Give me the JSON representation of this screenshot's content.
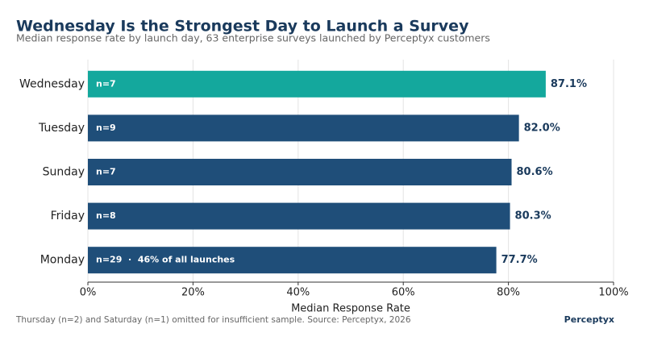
{
  "chart_data": {
    "type": "bar",
    "orientation": "horizontal",
    "title": "Wednesday Is the Strongest Day to Launch a Survey",
    "subtitle": "Median response rate by launch day, 63 enterprise surveys launched by Perceptyx customers",
    "categories": [
      "Wednesday",
      "Tuesday",
      "Sunday",
      "Friday",
      "Monday"
    ],
    "values": [
      87.1,
      82.0,
      80.6,
      80.3,
      77.7
    ],
    "value_labels": [
      "87.1%",
      "82.0%",
      "80.6%",
      "80.3%",
      "77.7%"
    ],
    "bar_annotations": [
      "n=7",
      "n=9",
      "n=7",
      "n=8",
      "n=29  ·  46% of all launches"
    ],
    "colors": [
      "#14a89d",
      "#1f4e79",
      "#1f4e79",
      "#1f4e79",
      "#1f4e79"
    ],
    "xlim": [
      0,
      100
    ],
    "xticks": [
      {
        "value": 0,
        "label": "0%"
      },
      {
        "value": 20,
        "label": "20%"
      },
      {
        "value": 40,
        "label": "40%"
      },
      {
        "value": 60,
        "label": "60%"
      },
      {
        "value": 80,
        "label": "80%"
      },
      {
        "value": 100,
        "label": "100%"
      }
    ],
    "xlabel": "Median Response Rate",
    "grid": true,
    "footnote": "Thursday (n=2) and Saturday (n=1) omitted for insufficient sample.  Source: Perceptyx, 2026",
    "brand": "Perceptyx"
  }
}
